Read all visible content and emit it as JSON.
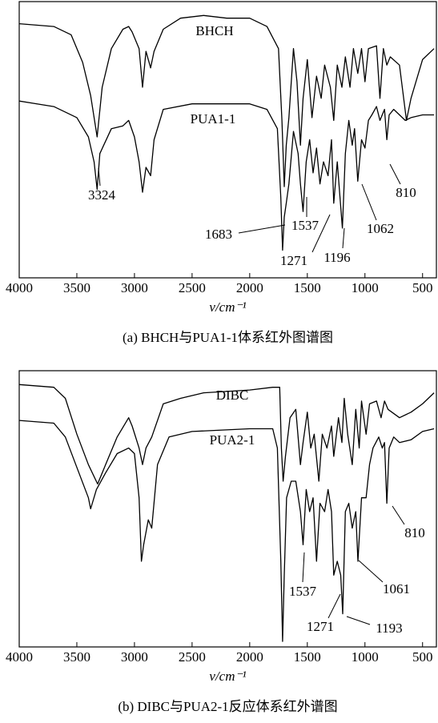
{
  "chart_data": [
    {
      "type": "line",
      "caption": "(a) BHCH与PUA1-1体系红外图谱图",
      "x_label": "v/cm⁻¹",
      "xlim": [
        4000,
        380
      ],
      "ylim": [
        0,
        100
      ],
      "xticks": [
        4000,
        3500,
        3000,
        2500,
        2000,
        1500,
        1000,
        500
      ],
      "grid": false,
      "series": [
        {
          "name": "BHCH",
          "color": "#000000",
          "x": [
            4000,
            3700,
            3550,
            3450,
            3380,
            3324,
            3280,
            3200,
            3100,
            3050,
            3020,
            2960,
            2930,
            2900,
            2860,
            2830,
            2750,
            2600,
            2400,
            2200,
            2000,
            1850,
            1750,
            1720,
            1700,
            1683,
            1660,
            1620,
            1590,
            1560,
            1537,
            1500,
            1460,
            1420,
            1380,
            1350,
            1300,
            1271,
            1240,
            1200,
            1170,
            1130,
            1100,
            1062,
            1030,
            1000,
            970,
            900,
            870,
            840,
            810,
            780,
            700,
            640,
            600,
            500,
            400
          ],
          "values": [
            92,
            91,
            88,
            78,
            66,
            51,
            69,
            83,
            90,
            91,
            89,
            83,
            69,
            82,
            76,
            82,
            90,
            94,
            95,
            94,
            94,
            91,
            83,
            57,
            33,
            48,
            58,
            83,
            71,
            48,
            65,
            79,
            58,
            73,
            65,
            77,
            69,
            57,
            77,
            69,
            80,
            69,
            83,
            74,
            83,
            71,
            83,
            84,
            65,
            83,
            77,
            80,
            77,
            57,
            65,
            79,
            83
          ]
        },
        {
          "name": "PUA1-1",
          "color": "#000000",
          "x": [
            4000,
            3700,
            3500,
            3400,
            3350,
            3324,
            3300,
            3200,
            3100,
            3050,
            3000,
            2960,
            2930,
            2900,
            2860,
            2830,
            2750,
            2500,
            2000,
            1850,
            1760,
            1730,
            1715,
            1700,
            1683,
            1660,
            1620,
            1580,
            1560,
            1537,
            1510,
            1480,
            1450,
            1420,
            1390,
            1360,
            1320,
            1290,
            1271,
            1240,
            1220,
            1196,
            1170,
            1140,
            1110,
            1090,
            1062,
            1030,
            1000,
            970,
            940,
            900,
            870,
            830,
            810,
            790,
            750,
            700,
            650,
            600,
            500,
            400
          ],
          "values": [
            64,
            62,
            58,
            51,
            42,
            32,
            45,
            54,
            55,
            57,
            51,
            42,
            31,
            40,
            37,
            50,
            61,
            63,
            63,
            61,
            54,
            29,
            10,
            22,
            27,
            34,
            53,
            45,
            34,
            24,
            42,
            50,
            38,
            47,
            34,
            42,
            37,
            50,
            27,
            42,
            31,
            18,
            45,
            57,
            48,
            54,
            35,
            50,
            47,
            57,
            59,
            62,
            57,
            61,
            50,
            59,
            61,
            59,
            57,
            58,
            59,
            59
          ]
        }
      ],
      "annotations": [
        "3324",
        "1683",
        "1537",
        "1271",
        "1196",
        "1062",
        "810"
      ]
    },
    {
      "type": "line",
      "caption": "(b) DIBC与PUA2-1反应体系红外谱图",
      "x_label": "v/cm⁻¹",
      "xlim": [
        4000,
        380
      ],
      "ylim": [
        0,
        100
      ],
      "xticks": [
        4000,
        3500,
        3000,
        2500,
        2000,
        1500,
        1000,
        500
      ],
      "grid": false,
      "series": [
        {
          "name": "DIBC",
          "color": "#000000",
          "x": [
            4000,
            3700,
            3600,
            3500,
            3400,
            3320,
            3250,
            3150,
            3050,
            3020,
            2960,
            2930,
            2900,
            2850,
            2750,
            2600,
            2400,
            2000,
            1800,
            1740,
            1725,
            1710,
            1690,
            1650,
            1600,
            1560,
            1537,
            1500,
            1470,
            1440,
            1400,
            1370,
            1330,
            1290,
            1271,
            1230,
            1200,
            1180,
            1150,
            1110,
            1080,
            1050,
            1030,
            990,
            960,
            900,
            860,
            830,
            800,
            700,
            600,
            500,
            400
          ],
          "values": [
            95,
            94,
            90,
            77,
            66,
            59,
            66,
            76,
            83,
            80,
            72,
            66,
            72,
            76,
            88,
            90,
            92,
            93,
            94,
            94,
            72,
            60,
            69,
            83,
            86,
            66,
            74,
            85,
            72,
            77,
            60,
            77,
            72,
            80,
            69,
            83,
            74,
            90,
            77,
            66,
            86,
            72,
            89,
            77,
            88,
            89,
            83,
            89,
            86,
            83,
            85,
            88,
            92
          ]
        },
        {
          "name": "PUA2-1",
          "color": "#000000",
          "x": [
            4000,
            3700,
            3600,
            3500,
            3400,
            3380,
            3330,
            3250,
            3150,
            3050,
            3000,
            2960,
            2940,
            2920,
            2880,
            2850,
            2800,
            2700,
            2500,
            2000,
            1800,
            1760,
            1730,
            1715,
            1700,
            1680,
            1640,
            1600,
            1560,
            1537,
            1510,
            1480,
            1450,
            1420,
            1390,
            1350,
            1320,
            1290,
            1271,
            1240,
            1210,
            1193,
            1170,
            1140,
            1110,
            1080,
            1061,
            1030,
            990,
            960,
            930,
            880,
            850,
            830,
            810,
            790,
            750,
            700,
            600,
            500,
            400
          ],
          "values": [
            82,
            81,
            76,
            65,
            54,
            50,
            57,
            63,
            70,
            72,
            70,
            54,
            31,
            37,
            46,
            43,
            66,
            76,
            78,
            79,
            79,
            72,
            31,
            2,
            26,
            54,
            60,
            60,
            49,
            37,
            57,
            49,
            54,
            31,
            52,
            49,
            57,
            49,
            26,
            31,
            26,
            12,
            49,
            52,
            43,
            49,
            31,
            54,
            54,
            66,
            72,
            76,
            72,
            74,
            52,
            72,
            76,
            74,
            75,
            78,
            79
          ]
        }
      ],
      "annotations": [
        "810",
        "1537",
        "1061",
        "1271",
        "1193"
      ]
    }
  ]
}
